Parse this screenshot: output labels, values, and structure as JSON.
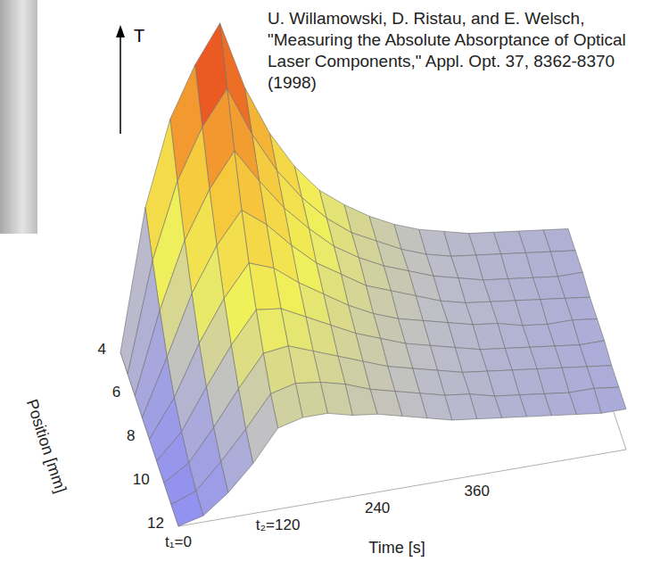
{
  "chart_data": {
    "type": "surface3d",
    "annotation": "U. Willamowski, D. Ristau, and E. Welsch, \"Measuring the Absolute Absorptance of Optical Laser Components,\" Appl. Opt. 37, 8362-8370 (1998)",
    "x_label": "Time [s]",
    "y_label": "Position [mm]",
    "z_label": "T",
    "x": [
      0,
      30,
      60,
      90,
      120,
      150,
      180,
      210,
      240,
      270,
      300,
      330,
      360,
      390,
      420,
      450,
      480,
      510,
      540
    ],
    "y": [
      4,
      5,
      6,
      7,
      8,
      9,
      10,
      11,
      12
    ],
    "z": [
      [
        0,
        0.45,
        0.72,
        0.88,
        1.0,
        0.78,
        0.62,
        0.5,
        0.41,
        0.35,
        0.3,
        0.26,
        0.23,
        0.21,
        0.19,
        0.18,
        0.17,
        0.16,
        0.15
      ],
      [
        0,
        0.35,
        0.59,
        0.75,
        0.86,
        0.7,
        0.57,
        0.47,
        0.39,
        0.33,
        0.29,
        0.25,
        0.22,
        0.2,
        0.19,
        0.18,
        0.17,
        0.16,
        0.15
      ],
      [
        0,
        0.26,
        0.47,
        0.62,
        0.73,
        0.62,
        0.52,
        0.44,
        0.37,
        0.32,
        0.28,
        0.25,
        0.22,
        0.2,
        0.18,
        0.17,
        0.16,
        0.15,
        0.15
      ],
      [
        0,
        0.18,
        0.37,
        0.51,
        0.61,
        0.55,
        0.47,
        0.4,
        0.35,
        0.3,
        0.27,
        0.24,
        0.21,
        0.19,
        0.18,
        0.17,
        0.16,
        0.15,
        0.14
      ],
      [
        0,
        0.12,
        0.28,
        0.41,
        0.51,
        0.48,
        0.42,
        0.37,
        0.32,
        0.28,
        0.25,
        0.23,
        0.21,
        0.19,
        0.18,
        0.16,
        0.15,
        0.15,
        0.14
      ],
      [
        0,
        0.08,
        0.21,
        0.33,
        0.43,
        0.42,
        0.38,
        0.34,
        0.3,
        0.27,
        0.24,
        0.22,
        0.2,
        0.18,
        0.17,
        0.16,
        0.15,
        0.14,
        0.14
      ],
      [
        0,
        0.05,
        0.15,
        0.26,
        0.36,
        0.37,
        0.34,
        0.31,
        0.28,
        0.25,
        0.23,
        0.21,
        0.19,
        0.18,
        0.17,
        0.16,
        0.15,
        0.14,
        0.13
      ],
      [
        0,
        0.03,
        0.11,
        0.2,
        0.3,
        0.32,
        0.31,
        0.29,
        0.26,
        0.24,
        0.22,
        0.2,
        0.19,
        0.17,
        0.16,
        0.15,
        0.14,
        0.14,
        0.13
      ],
      [
        0,
        0.02,
        0.08,
        0.16,
        0.26,
        0.28,
        0.28,
        0.26,
        0.25,
        0.23,
        0.21,
        0.19,
        0.18,
        0.17,
        0.16,
        0.15,
        0.14,
        0.13,
        0.13
      ]
    ],
    "xlim": [
      0,
      540
    ],
    "xticks": [
      {
        "value": 0,
        "label": "t₁=0"
      },
      {
        "value": 120,
        "label": "t₂=120"
      },
      240,
      360
    ],
    "ylim": [
      4,
      12
    ],
    "yticks": [
      4,
      6,
      8,
      10,
      12
    ],
    "zlim": [
      0,
      1
    ]
  }
}
